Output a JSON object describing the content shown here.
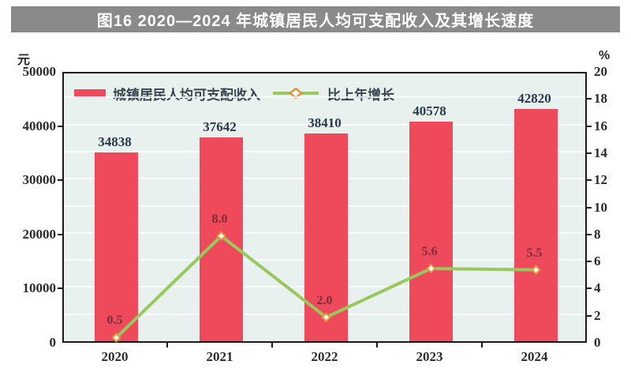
{
  "title": "图16  2020—2024 年城镇居民人均可支配收入及其增长速度",
  "chart_data": {
    "type": "bar",
    "subtype": "bar-line-combo",
    "title": "图16  2020—2024 年城镇居民人均可支配收入及其增长速度",
    "categories": [
      "2020",
      "2021",
      "2022",
      "2023",
      "2024"
    ],
    "series": [
      {
        "name": "城镇居民人均可支配收入",
        "type": "bar",
        "axis": "left",
        "values": [
          34838,
          37642,
          38410,
          40578,
          42820
        ],
        "labels": [
          "34838",
          "37642",
          "38410",
          "40578",
          "42820"
        ]
      },
      {
        "name": "比上年增长",
        "type": "line",
        "axis": "right",
        "values": [
          0.5,
          8.0,
          2.0,
          5.6,
          5.5
        ],
        "labels": [
          "0.5",
          "8.0",
          "2.0",
          "5.6",
          "5.5"
        ]
      }
    ],
    "left_axis": {
      "unit": "元",
      "min": 0,
      "max": 50000,
      "ticks": [
        50000,
        40000,
        30000,
        20000,
        10000,
        0
      ]
    },
    "right_axis": {
      "unit": "%",
      "min": 0,
      "max": 20,
      "ticks": [
        20,
        18,
        16,
        14,
        12,
        10,
        8,
        6,
        4,
        2,
        0
      ]
    },
    "grid": true,
    "legend_position": "inside-top-left",
    "colors": {
      "bar": "#ee4a5c",
      "line": "#97c95c",
      "marker_stroke": "#e5923d",
      "marker_fill": "#ffffff",
      "bar_label": "#273a4d",
      "line_label": "#7a2f3b",
      "plot_bg": "#e9f1ee",
      "title_bg": "#8a8a8a",
      "title_text": "#ffffff",
      "axis_text": "#2a2a2a",
      "border": "#1a1a1a"
    }
  }
}
